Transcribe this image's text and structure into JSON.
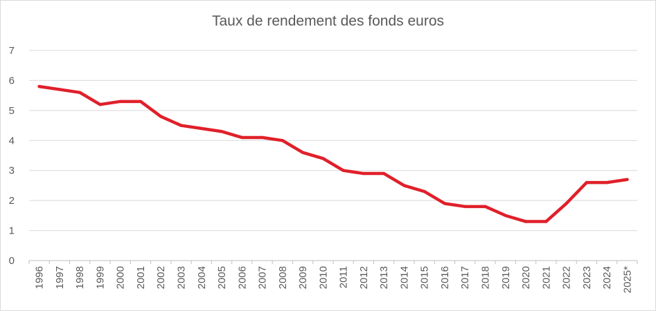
{
  "chart_data": {
    "type": "line",
    "title": "Taux de rendement des fonds euros",
    "xlabel": "",
    "ylabel": "",
    "ylim": [
      0,
      7
    ],
    "yticks": [
      "0",
      "1",
      "2",
      "3",
      "4",
      "5",
      "6",
      "7"
    ],
    "grid": true,
    "legend": "none",
    "categories": [
      "1996",
      "1997",
      "1998",
      "1999",
      "2000",
      "2001",
      "2002",
      "2003",
      "2004",
      "2005",
      "2006",
      "2007",
      "2008",
      "2009",
      "2010",
      "2011",
      "2012",
      "2013",
      "2014",
      "2015",
      "2016",
      "2017",
      "2018",
      "2019",
      "2020",
      "2021",
      "2022",
      "2023",
      "2024",
      "2025*"
    ],
    "series": [
      {
        "color": "#e0202a",
        "values": [
          5.8,
          5.7,
          5.6,
          5.2,
          5.3,
          5.3,
          4.8,
          4.5,
          4.4,
          4.3,
          4.1,
          4.1,
          4.0,
          3.6,
          3.4,
          3.0,
          2.9,
          2.9,
          2.5,
          2.3,
          1.9,
          1.8,
          1.8,
          1.5,
          1.3,
          1.3,
          1.9,
          2.6,
          2.6,
          2.7
        ]
      }
    ],
    "colors": {
      "grid": "#d9d9d9",
      "axis": "#bfbfbf",
      "text": "#595959",
      "line": "#e0202a"
    }
  }
}
